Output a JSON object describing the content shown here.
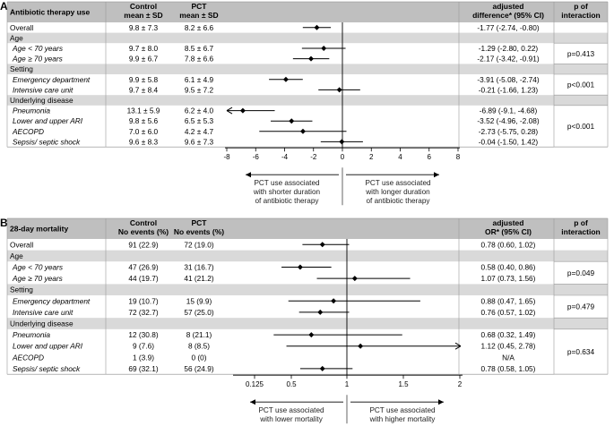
{
  "colors": {
    "header_bg": "#bfbfbf",
    "section_bg": "#d9d9d9",
    "line": "#000000",
    "marker": "#000000"
  },
  "chart_data": [
    {
      "type": "forest",
      "panel": "A",
      "title": "Antibiotic therapy use",
      "columns": {
        "control": [
          "Control",
          "mean ± SD"
        ],
        "pct": [
          "PCT",
          "mean ± SD"
        ],
        "effect": [
          "adjusted",
          "difference* (95% CI)"
        ],
        "interaction": [
          "p of",
          "interaction"
        ]
      },
      "xlim": [
        -8,
        8
      ],
      "xticks": [
        -8,
        -6,
        -4,
        -2,
        0,
        2,
        4,
        6,
        8
      ],
      "ref": 0,
      "annotation_left": [
        "PCT use associated",
        "with shorter duration",
        "of antibiotic therapy"
      ],
      "annotation_right": [
        "PCT use associated",
        "with longer duration",
        "of antibiotic therapy"
      ],
      "rows": [
        {
          "kind": "data",
          "label": "Overall",
          "italic": false,
          "control": "9.8 ± 7.3",
          "pct": "8.2 ± 6.6",
          "est": -1.77,
          "lo": -2.74,
          "hi": -0.8,
          "ci": "-1.77 (-2.74, -0.80)"
        },
        {
          "kind": "section",
          "label": "Age"
        },
        {
          "kind": "data",
          "label": "Age < 70 years",
          "italic": true,
          "control": "9.7 ± 8.0",
          "pct": "8.5 ± 6.7",
          "est": -1.29,
          "lo": -2.8,
          "hi": 0.22,
          "ci": "-1.29 (-2.80, 0.22)"
        },
        {
          "kind": "data",
          "label": "Age ≥ 70 years",
          "italic": true,
          "control": "9.9 ± 6.7",
          "pct": "7.8 ± 6.6",
          "est": -2.17,
          "lo": -3.42,
          "hi": -0.91,
          "ci": "-2.17 (-3.42, -0.91)"
        },
        {
          "kind": "section",
          "label": "Setting"
        },
        {
          "kind": "data",
          "label": "Emergency department",
          "italic": true,
          "control": "9.9 ± 5.8",
          "pct": "6.1 ± 4.9",
          "est": -3.91,
          "lo": -5.08,
          "hi": -2.74,
          "ci": "-3.91 (-5.08, -2.74)"
        },
        {
          "kind": "data",
          "label": "Intensive care unit",
          "italic": true,
          "control": "9.7 ± 8.4",
          "pct": "9.5 ± 7.2",
          "est": -0.21,
          "lo": -1.66,
          "hi": 1.23,
          "ci": "-0.21 (-1.66, 1.23)"
        },
        {
          "kind": "section",
          "label": "Underlying disease"
        },
        {
          "kind": "data",
          "label": "Pneumonia",
          "italic": true,
          "control": "13.1 ± 5.9",
          "pct": "6.2 ± 4.0",
          "est": -6.89,
          "lo": -9.1,
          "hi": -4.68,
          "ci": "-6.89 (-9.1, -4.68)"
        },
        {
          "kind": "data",
          "label": "Lower and upper ARI",
          "italic": true,
          "control": "9.8 ± 5.6",
          "pct": "6.5 ± 5.3",
          "est": -3.52,
          "lo": -4.96,
          "hi": -2.08,
          "ci": "-3.52 (-4.96, -2.08)"
        },
        {
          "kind": "data",
          "label": "AECOPD",
          "italic": true,
          "control": "7.0 ± 6.0",
          "pct": "4.2 ± 4.7",
          "est": -2.73,
          "lo": -5.75,
          "hi": 0.28,
          "ci": "-2.73 (-5.75, 0.28)"
        },
        {
          "kind": "data",
          "label": "Sepsis/ septic shock",
          "italic": true,
          "control": "9.6 ± 8.3",
          "pct": "9.6 ± 7.3",
          "est": -0.04,
          "lo": -1.5,
          "hi": 1.42,
          "ci": "-0.04 (-1.50, 1.42)"
        }
      ],
      "interactions": [
        {
          "value": "p=0.413",
          "rows": [
            2,
            3
          ]
        },
        {
          "value": "p<0.001",
          "rows": [
            5,
            6
          ]
        },
        {
          "value": "p<0.001",
          "rows": [
            8,
            9,
            10,
            11
          ]
        }
      ]
    },
    {
      "type": "forest",
      "panel": "B",
      "title": "28-day mortality",
      "columns": {
        "control": [
          "Control",
          "No events (%)"
        ],
        "pct": [
          "PCT",
          "No events (%)"
        ],
        "effect": [
          "adjusted",
          "OR* (95% CI)"
        ],
        "interaction": [
          "p of",
          "interaction"
        ]
      },
      "xlim": [
        0.125,
        2
      ],
      "xticks": [
        0.125,
        0.5,
        1,
        1.5,
        2
      ],
      "ref": 1,
      "annotation_left": [
        "PCT use associated",
        "with lower mortality"
      ],
      "annotation_right": [
        "PCT use associated",
        "with higher mortality"
      ],
      "rows": [
        {
          "kind": "data",
          "label": "Overall",
          "italic": false,
          "control": "91 (22.9)",
          "pct": "72 (19.0)",
          "est": 0.78,
          "lo": 0.6,
          "hi": 1.02,
          "ci": "0.78 (0.60, 1.02)"
        },
        {
          "kind": "section",
          "label": "Age"
        },
        {
          "kind": "data",
          "label": "Age < 70 years",
          "italic": true,
          "control": "47 (26.9)",
          "pct": "31 (16.7)",
          "est": 0.58,
          "lo": 0.4,
          "hi": 0.86,
          "ci": "0.58 (0.40, 0.86)"
        },
        {
          "kind": "data",
          "label": "Age ≥ 70 years",
          "italic": true,
          "control": "44 (19.7)",
          "pct": "41 (21.2)",
          "est": 1.07,
          "lo": 0.73,
          "hi": 1.56,
          "ci": "1.07 (0.73, 1.56)"
        },
        {
          "kind": "section",
          "label": "Setting"
        },
        {
          "kind": "data",
          "label": "Emergency department",
          "italic": true,
          "control": "19 (10.7)",
          "pct": "15 (9.9)",
          "est": 0.88,
          "lo": 0.47,
          "hi": 1.65,
          "ci": "0.88 (0.47, 1.65)"
        },
        {
          "kind": "data",
          "label": "Intensive care unit",
          "italic": true,
          "control": "72 (32.7)",
          "pct": "57 (25.0)",
          "est": 0.76,
          "lo": 0.57,
          "hi": 1.02,
          "ci": "0.76 (0.57, 1.02)"
        },
        {
          "kind": "section",
          "label": "Underlying disease"
        },
        {
          "kind": "data",
          "label": "Pneumonia",
          "italic": true,
          "control": "12 (30.8)",
          "pct": "8 (21.1)",
          "est": 0.68,
          "lo": 0.32,
          "hi": 1.49,
          "ci": "0.68 (0.32, 1.49)"
        },
        {
          "kind": "data",
          "label": "Lower and upper ARI",
          "italic": true,
          "control": "9 (7.6)",
          "pct": "8 (8.5)",
          "est": 1.12,
          "lo": 0.45,
          "hi": 2.78,
          "ci": "1.12 (0.45, 2.78)"
        },
        {
          "kind": "data",
          "label": "AECOPD",
          "italic": true,
          "control": "1 (3.9)",
          "pct": "0 (0)",
          "est": null,
          "lo": null,
          "hi": null,
          "ci": "N/A"
        },
        {
          "kind": "data",
          "label": "Sepsis/ septic shock",
          "italic": true,
          "control": "69 (32.1)",
          "pct": "56 (24.9)",
          "est": 0.78,
          "lo": 0.58,
          "hi": 1.05,
          "ci": "0.78 (0.58, 1.05)"
        }
      ],
      "interactions": [
        {
          "value": "p=0.049",
          "rows": [
            2,
            3
          ]
        },
        {
          "value": "p=0.479",
          "rows": [
            5,
            6
          ]
        },
        {
          "value": "p=0.634",
          "rows": [
            8,
            9,
            10,
            11
          ]
        }
      ]
    }
  ]
}
